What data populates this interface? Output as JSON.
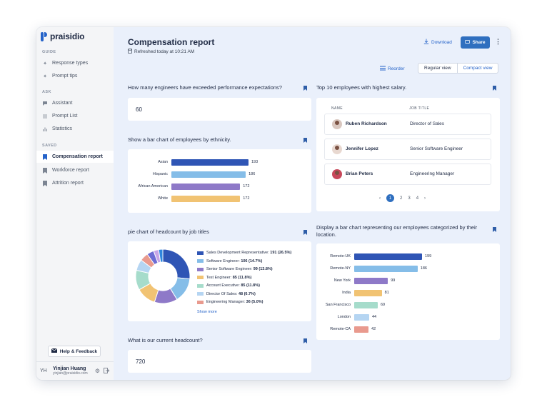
{
  "brand": "praisidio",
  "sidebar": {
    "sections": [
      {
        "title": "GUIDE",
        "items": [
          {
            "label": "Response types",
            "icon": "sparkle-icon"
          },
          {
            "label": "Prompt tips",
            "icon": "sparkle-icon"
          }
        ]
      },
      {
        "title": "ASK",
        "items": [
          {
            "label": "Assistant",
            "icon": "chat-icon"
          },
          {
            "label": "Prompt List",
            "icon": "list-icon"
          },
          {
            "label": "Statistics",
            "icon": "bar-chart-icon"
          }
        ]
      },
      {
        "title": "SAVED",
        "items": [
          {
            "label": "Compensation report",
            "icon": "bookmark-icon",
            "active": true
          },
          {
            "label": "Workforce report",
            "icon": "bookmark-icon"
          },
          {
            "label": "Attrition report",
            "icon": "bookmark-icon"
          }
        ]
      }
    ],
    "help_label": "Help & Feedback",
    "user": {
      "initials": "YH",
      "name": "Yinjian Huang",
      "email": "yinjian@praisidio.com"
    }
  },
  "header": {
    "title": "Compensation report",
    "refreshed": "Refreshed today at 10:21 AM",
    "download_label": "Download",
    "share_label": "Share",
    "reorder_label": "Reorder",
    "views": [
      "Regular view",
      "Compact view"
    ],
    "selected_view": "Compact view"
  },
  "widgets": {
    "engineers": {
      "question": "How many engineers have exceeded performance expectations?",
      "value": "60"
    },
    "ethnicity": {
      "question": "Show a bar chart of employees by ethnicity.",
      "bars": [
        {
          "label": "Asian",
          "value": 193,
          "color": "#2f55b5"
        },
        {
          "label": "Hispanic",
          "value": 186,
          "color": "#85bde8"
        },
        {
          "label": "African American",
          "value": 172,
          "color": "#8e79c8"
        },
        {
          "label": "White",
          "value": 172,
          "color": "#f1c373"
        }
      ]
    },
    "top_salary": {
      "question": "Top 10 employees with highest salary.",
      "col_name": "NAME",
      "col_title": "JOB TITLE",
      "rows": [
        {
          "name": "Ruben Richardson",
          "title": "Director of Sales"
        },
        {
          "name": "Jennifer Lopez",
          "title": "Senior Software Engineer"
        },
        {
          "name": "Brian Peters",
          "title": "Engineering Manager"
        }
      ],
      "pages": [
        "‹",
        "1",
        "2",
        "3",
        "4",
        "›"
      ],
      "current_page": "1"
    },
    "pie": {
      "question": "pie chart of headcount by job titles",
      "slices": [
        {
          "label": "Sales Development Representative:",
          "value_text": "191 (26.5%)",
          "value": 191,
          "color": "#2f55b5"
        },
        {
          "label": "Software Engineer:",
          "value_text": "106 (14.7%)",
          "value": 106,
          "color": "#85bde8"
        },
        {
          "label": "Senior Software Engineer:",
          "value_text": "99 (13.8%)",
          "value": 99,
          "color": "#8e79c8"
        },
        {
          "label": "Test Engineer:",
          "value_text": "85 (11.8%)",
          "value": 85,
          "color": "#f1c373"
        },
        {
          "label": "Account Executive:",
          "value_text": "85 (11.8%)",
          "value": 85,
          "color": "#a6dccb"
        },
        {
          "label": "Director Of Sales:",
          "value_text": "48 (6.7%)",
          "value": 48,
          "color": "#b5d5f2"
        },
        {
          "label": "Engineering Manager:",
          "value_text": "36 (5.0%)",
          "value": 36,
          "color": "#e99a8e"
        }
      ],
      "remainder_colors": [
        "#6c6cd4",
        "#c7a6e8",
        "#2e86de"
      ],
      "remainder_values": [
        30,
        22,
        18
      ],
      "show_more": "Show more"
    },
    "location": {
      "question": "Display a bar chart representing our employees categorized by their location.",
      "bars": [
        {
          "label": "Remote-UK",
          "value": 199,
          "color": "#2f55b5"
        },
        {
          "label": "Remote-NY",
          "value": 186,
          "color": "#85bde8"
        },
        {
          "label": "New York",
          "value": 99,
          "color": "#8e79c8"
        },
        {
          "label": "India",
          "value": 81,
          "color": "#f1c373"
        },
        {
          "label": "San Francisco",
          "value": 69,
          "color": "#a6dccb"
        },
        {
          "label": "London",
          "value": 44,
          "color": "#b5d5f2"
        },
        {
          "label": "Remote-CA",
          "value": 42,
          "color": "#e99a8e"
        }
      ]
    },
    "headcount": {
      "question": "What is our current headcount?",
      "value": "720"
    }
  }
}
